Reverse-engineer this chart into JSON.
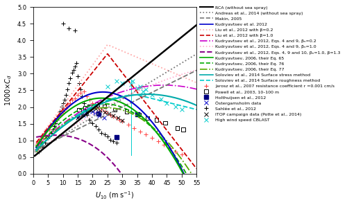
{
  "xlim": [
    0,
    55
  ],
  "ylim": [
    0,
    5
  ],
  "yticks": [
    0,
    0.5,
    1.0,
    1.5,
    2.0,
    2.5,
    3.0,
    3.5,
    4.0,
    4.5,
    5.0
  ],
  "xticks": [
    0,
    5,
    10,
    15,
    20,
    25,
    30,
    35,
    40,
    45,
    50,
    55
  ],
  "xlabel": "U_{10} (m s^{-1})",
  "ylabel": "1000×C_d",
  "lines": {
    "rca": {
      "color": "#000000",
      "ls": "-",
      "lw": 1.8
    },
    "andreas": {
      "color": "#777777",
      "ls": ":",
      "lw": 1.3
    },
    "makin": {
      "color": "#777777",
      "ls": "--",
      "lw": 1.3
    },
    "kudry2012": {
      "color": "#0000cc",
      "ls": "-",
      "lw": 1.5
    },
    "liu_beta02": {
      "color": "#ffaaaa",
      "ls": ":",
      "lw": 1.3
    },
    "liu_beta10": {
      "color": "#cc0000",
      "ls": "--",
      "lw": 1.3
    },
    "kudry2012_49_02": {
      "color": "#cc00cc",
      "ls": "-.",
      "lw": 1.2
    },
    "kudry2012_49_10": {
      "color": "#ffaacc",
      "ls": ":",
      "lw": 1.2
    },
    "kudry2012_4910": {
      "color": "#880088",
      "ls": "--",
      "lw": 1.5
    },
    "kudry2006_65": {
      "color": "#00aa00",
      "ls": "-",
      "lw": 1.5
    },
    "kudry2006_76": {
      "color": "#00aa00",
      "ls": "--",
      "lw": 1.3
    },
    "kudry2006_77": {
      "color": "#55aa00",
      "ls": "-.",
      "lw": 1.3
    },
    "solov_stress": {
      "color": "#00aaaa",
      "ls": "-",
      "lw": 1.5
    },
    "solov_rough": {
      "color": "#00cccc",
      "ls": "--",
      "lw": 1.3
    }
  },
  "legend_labels": [
    "RCA (without sea spray)",
    "Andreas et al., 2014 (without sea spray)",
    "Makin, 2005",
    "Kudryavtsev et al. 2012",
    "Liu et al., 2012 with β=0.2",
    "Liu et al., 2012 with β=1.0",
    "Kudryavtsev et al., 2012, Eqs. 4 and 9, βₙ=0.2",
    "Kudryavtsev et al., 2012, Eqs. 4 and 9, βₙ=1.0",
    "Kudryavtsev et al., 2012, Eqs. 4, 9 and 10, βₙ=1.0, β=1.3",
    "Kudryavtsev, 2006, their Eq. 65",
    "Kudryavtsev, 2006, their Eq. 76",
    "Kudryavtsev, 2006, their Eq. 77",
    "Soloviev et al., 2014 Surface stress method",
    "Soloviev et al., 2014 Surface roughness method",
    "Jarosz et al., 2007 resistance coefficient r =0.001 cm/s",
    "Powell et al., 2003, 10–100 m",
    "Holthuijsen et al., 2012",
    "Östergamsholm data",
    "Sahlée et al., 2012",
    "ITOP campaign data (Potte et al., 2014)",
    "High wind speed CBLAST"
  ]
}
